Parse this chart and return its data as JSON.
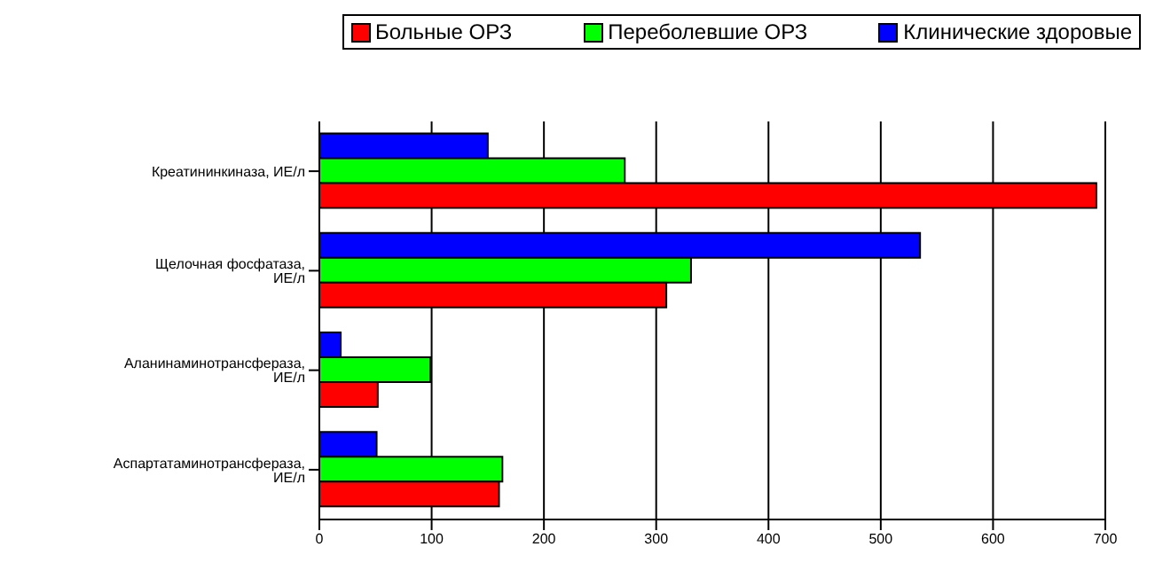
{
  "chart_data": {
    "type": "bar",
    "orientation": "horizontal",
    "categories": [
      "Креатининкиназа, ИЕ/л",
      "Щелочная фосфатаза, ИЕ/л",
      "Аланинаминотрансфераза, ИЕ/л",
      "Аспартатаминотрансфераза, ИЕ/л"
    ],
    "series": [
      {
        "name": "Больные ОРЗ",
        "color": "#ff0000",
        "values": [
          692,
          309,
          52,
          160
        ]
      },
      {
        "name": "Переболевшие ОРЗ",
        "color": "#00ff00",
        "values": [
          272,
          331,
          99,
          163
        ]
      },
      {
        "name": "Клинические здоровые",
        "color": "#0000ff",
        "values": [
          150,
          535,
          19,
          51
        ]
      }
    ],
    "xlim": [
      0,
      700
    ],
    "xticks": [
      0,
      100,
      200,
      300,
      400,
      500,
      600,
      700
    ],
    "grid": "x",
    "legend": "top right"
  }
}
